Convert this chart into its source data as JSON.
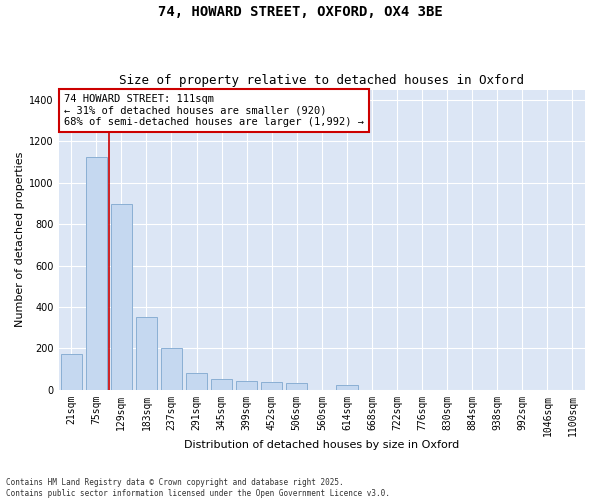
{
  "title_line1": "74, HOWARD STREET, OXFORD, OX4 3BE",
  "title_line2": "Size of property relative to detached houses in Oxford",
  "xlabel": "Distribution of detached houses by size in Oxford",
  "ylabel": "Number of detached properties",
  "categories": [
    "21sqm",
    "75sqm",
    "129sqm",
    "183sqm",
    "237sqm",
    "291sqm",
    "345sqm",
    "399sqm",
    "452sqm",
    "506sqm",
    "560sqm",
    "614sqm",
    "668sqm",
    "722sqm",
    "776sqm",
    "830sqm",
    "884sqm",
    "938sqm",
    "992sqm",
    "1046sqm",
    "1100sqm"
  ],
  "values": [
    175,
    1125,
    895,
    350,
    200,
    80,
    50,
    45,
    40,
    35,
    0,
    25,
    0,
    0,
    0,
    0,
    0,
    0,
    0,
    0,
    0
  ],
  "bar_color": "#c5d8f0",
  "bar_edgecolor": "#8aafd4",
  "bar_linewidth": 0.7,
  "vline_x": 1.5,
  "vline_color": "#cc0000",
  "vline_linewidth": 1.2,
  "annotation_text": "74 HOWARD STREET: 111sqm\n← 31% of detached houses are smaller (920)\n68% of semi-detached houses are larger (1,992) →",
  "annotation_box_edgecolor": "#cc0000",
  "ylim": [
    0,
    1450
  ],
  "yticks": [
    0,
    200,
    400,
    600,
    800,
    1000,
    1200,
    1400
  ],
  "bg_color": "#dce6f5",
  "footnote": "Contains HM Land Registry data © Crown copyright and database right 2025.\nContains public sector information licensed under the Open Government Licence v3.0.",
  "title_fontsize": 10,
  "subtitle_fontsize": 9,
  "axis_label_fontsize": 8,
  "tick_fontsize": 7,
  "ann_fontsize": 7.5
}
